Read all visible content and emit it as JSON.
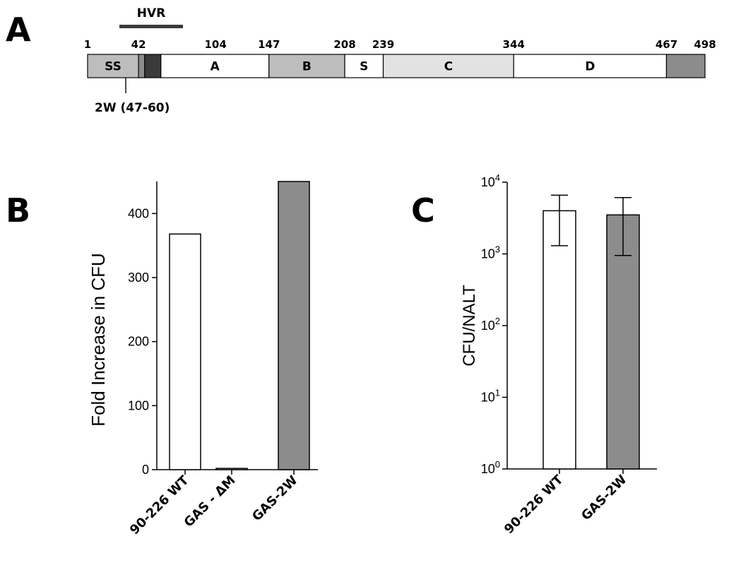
{
  "panels": {
    "a": "A",
    "b": "B",
    "c": "C"
  },
  "diagram": {
    "hvr_label": "HVR",
    "hvr_range": [
      42,
      104
    ],
    "position_labels": [
      {
        "pos": 1,
        "text": "1"
      },
      {
        "pos": 42,
        "text": "42"
      },
      {
        "pos": 104,
        "text": "104"
      },
      {
        "pos": 147,
        "text": "147"
      },
      {
        "pos": 208,
        "text": "208"
      },
      {
        "pos": 239,
        "text": "239"
      },
      {
        "pos": 344,
        "text": "344"
      },
      {
        "pos": 467,
        "text": "467"
      },
      {
        "pos": 498,
        "text": "498"
      }
    ],
    "domains": [
      {
        "label": "SS",
        "start": 1,
        "end": 42,
        "color": "#bdbdbd"
      },
      {
        "label": "",
        "start": 42,
        "end": 47,
        "color": "#8c8c8c"
      },
      {
        "label": "",
        "start": 47,
        "end": 60,
        "color": "#3a3a3a"
      },
      {
        "label": "A",
        "start": 60,
        "end": 147,
        "color": "#ffffff"
      },
      {
        "label": "B",
        "start": 147,
        "end": 208,
        "color": "#bdbdbd"
      },
      {
        "label": "S",
        "start": 208,
        "end": 239,
        "color": "#ffffff"
      },
      {
        "label": "C",
        "start": 239,
        "end": 344,
        "color": "#e2e2e2"
      },
      {
        "label": "D",
        "start": 344,
        "end": 467,
        "color": "#ffffff"
      },
      {
        "label": "",
        "start": 467,
        "end": 498,
        "color": "#8c8c8c"
      }
    ],
    "epitope_label": "2W (47-60)",
    "epitope_pos": 53
  },
  "chart_data": [
    {
      "type": "bar",
      "panel": "B",
      "title": "",
      "ylabel": "Fold Increase in CFU",
      "xlabel": "",
      "categories": [
        "90-226 WT",
        "GAS - ΔM",
        "GAS-2W"
      ],
      "values": [
        368,
        2,
        450
      ],
      "colors": [
        "#ffffff",
        "#ffffff",
        "#8c8c8c"
      ],
      "ylim": [
        0,
        450
      ],
      "yticks": [
        0,
        100,
        200,
        300,
        400
      ],
      "ytick_labels": [
        "0",
        "100",
        "200",
        "300",
        "400"
      ],
      "grid": false,
      "legend": "none"
    },
    {
      "type": "bar",
      "panel": "C",
      "title": "",
      "ylabel": "CFU/NALT",
      "xlabel": "",
      "yscale": "log",
      "categories": [
        "90-226 WT",
        "GAS-2W"
      ],
      "values": [
        4000,
        3500
      ],
      "error_low": [
        1300,
        950
      ],
      "error_high": [
        6600,
        6100
      ],
      "colors": [
        "#ffffff",
        "#8c8c8c"
      ],
      "ylim": [
        1,
        10000
      ],
      "yticks": [
        1,
        10,
        100,
        1000,
        10000
      ],
      "ytick_labels": [
        [
          "10",
          "0"
        ],
        [
          "10",
          "1"
        ],
        [
          "10",
          "2"
        ],
        [
          "10",
          "3"
        ],
        [
          "10",
          "4"
        ]
      ],
      "grid": false,
      "legend": "none"
    }
  ]
}
